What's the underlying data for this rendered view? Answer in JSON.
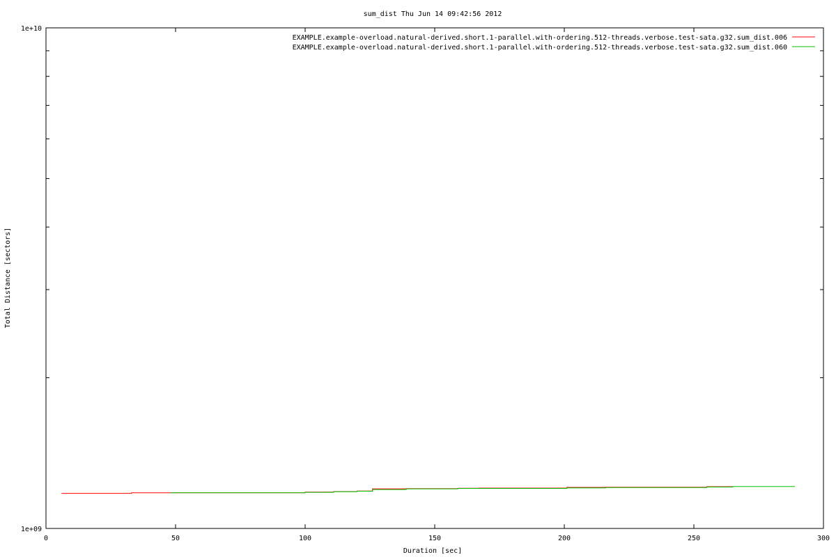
{
  "chart_data": {
    "type": "line",
    "title": "sum_dist Thu Jun 14 09:42:56 2012",
    "xlabel": "Duration [sec]",
    "ylabel": "Total Distance [sectors]",
    "xlim": [
      0,
      300
    ],
    "ylim": [
      1000000000,
      10000000000
    ],
    "y_scale": "log",
    "grid": false,
    "legend_position": "top-right",
    "x_ticks": [
      {
        "value": 0,
        "label": "0"
      },
      {
        "value": 50,
        "label": "50"
      },
      {
        "value": 100,
        "label": "100"
      },
      {
        "value": 150,
        "label": "150"
      },
      {
        "value": 200,
        "label": "200"
      },
      {
        "value": 250,
        "label": "250"
      },
      {
        "value": 300,
        "label": "300"
      }
    ],
    "y_ticks": [
      {
        "value": 1000000000,
        "label": "1e+09"
      },
      {
        "value": 10000000000,
        "label": "1e+10"
      }
    ],
    "y_minor_ticks": [
      2000000000,
      3000000000,
      4000000000,
      5000000000,
      6000000000,
      7000000000,
      8000000000,
      9000000000
    ],
    "series": [
      {
        "name": "EXAMPLE.example-overload.natural-derived.short.1-parallel.with-ordering.512-threads.verbose.test-sata.g32.sum_dist.006",
        "color": "#ff0000",
        "points": [
          [
            6,
            1175000000
          ],
          [
            33,
            1175000000
          ],
          [
            33,
            1178000000
          ],
          [
            48,
            1178000000
          ],
          [
            100,
            1178000000
          ],
          [
            100,
            1182000000
          ],
          [
            111,
            1182000000
          ],
          [
            111,
            1185000000
          ],
          [
            120,
            1185000000
          ],
          [
            120,
            1188000000
          ],
          [
            126,
            1188000000
          ],
          [
            126,
            1200000000
          ],
          [
            139,
            1200000000
          ],
          [
            139,
            1201000000
          ],
          [
            159,
            1201000000
          ],
          [
            159,
            1203000000
          ],
          [
            167,
            1203000000
          ],
          [
            167,
            1204000000
          ],
          [
            201,
            1204000000
          ],
          [
            201,
            1208000000
          ],
          [
            216,
            1208000000
          ],
          [
            216,
            1209000000
          ],
          [
            255,
            1209000000
          ],
          [
            255,
            1212000000
          ],
          [
            265,
            1212000000
          ]
        ]
      },
      {
        "name": "EXAMPLE.example-overload.natural-derived.short.1-parallel.with-ordering.512-threads.verbose.test-sata.g32.sum_dist.060",
        "color": "#00c000",
        "points": [
          [
            48,
            1178000000
          ],
          [
            100,
            1178000000
          ],
          [
            100,
            1181000000
          ],
          [
            111,
            1181000000
          ],
          [
            111,
            1184000000
          ],
          [
            120,
            1184000000
          ],
          [
            120,
            1187000000
          ],
          [
            126,
            1187000000
          ],
          [
            126,
            1196000000
          ],
          [
            139,
            1196000000
          ],
          [
            139,
            1200000000
          ],
          [
            159,
            1200000000
          ],
          [
            159,
            1202000000
          ],
          [
            201,
            1202000000
          ],
          [
            201,
            1205000000
          ],
          [
            216,
            1205000000
          ],
          [
            216,
            1207000000
          ],
          [
            255,
            1207000000
          ],
          [
            255,
            1210000000
          ],
          [
            265,
            1210000000
          ],
          [
            265,
            1213000000
          ],
          [
            289,
            1213000000
          ]
        ]
      }
    ]
  }
}
